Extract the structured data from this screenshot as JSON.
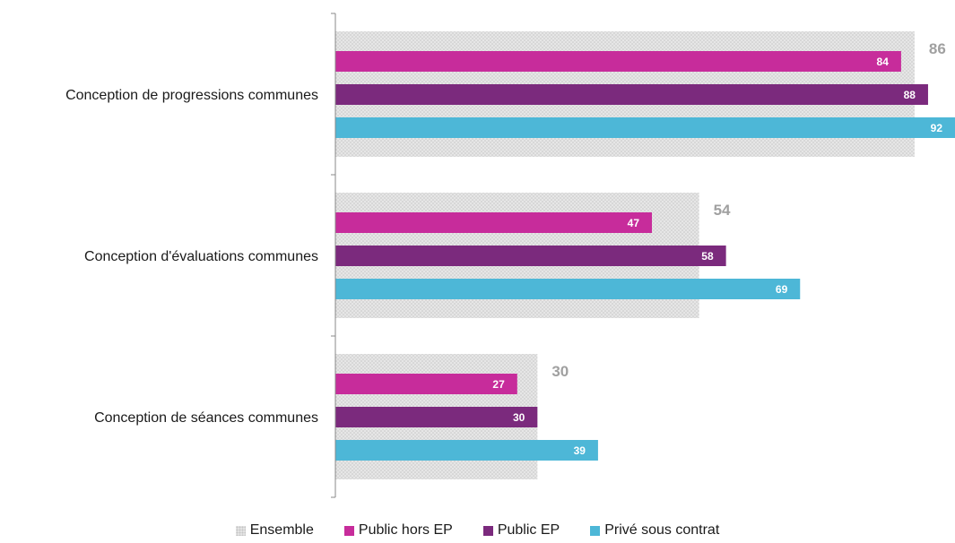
{
  "chart_data": {
    "type": "bar",
    "orientation": "horizontal",
    "categories": [
      "Conception de progressions communes",
      "Conception d'évaluations communes",
      "Conception de séances communes"
    ],
    "series": [
      {
        "name": "Ensemble",
        "values": [
          86,
          54,
          30
        ],
        "color": "#d9d9d9",
        "pattern": "dotted-gray"
      },
      {
        "name": "Public hors EP",
        "values": [
          84,
          47,
          27
        ],
        "color": "#c72c9b"
      },
      {
        "name": "Public EP",
        "values": [
          88,
          58,
          30
        ],
        "color": "#7b2a7d"
      },
      {
        "name": "Privé sous contrat",
        "values": [
          92,
          69,
          39
        ],
        "color": "#4db7d7"
      }
    ],
    "xlim": [
      0,
      92
    ],
    "legend_position": "bottom",
    "grid": false
  }
}
